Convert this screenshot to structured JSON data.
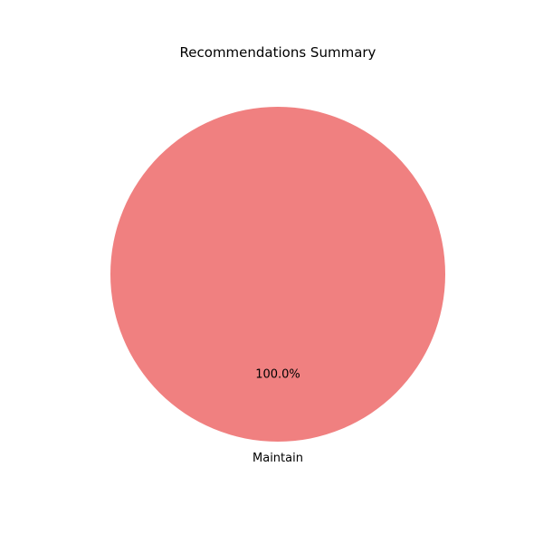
{
  "chart_data": {
    "type": "pie",
    "title": "Recommendations Summary",
    "categories": [
      "Maintain"
    ],
    "values": [
      100.0
    ],
    "percent_labels": [
      "100.0%"
    ],
    "colors": [
      "#f08080"
    ],
    "start_angle_deg": 90,
    "legend": "none"
  }
}
